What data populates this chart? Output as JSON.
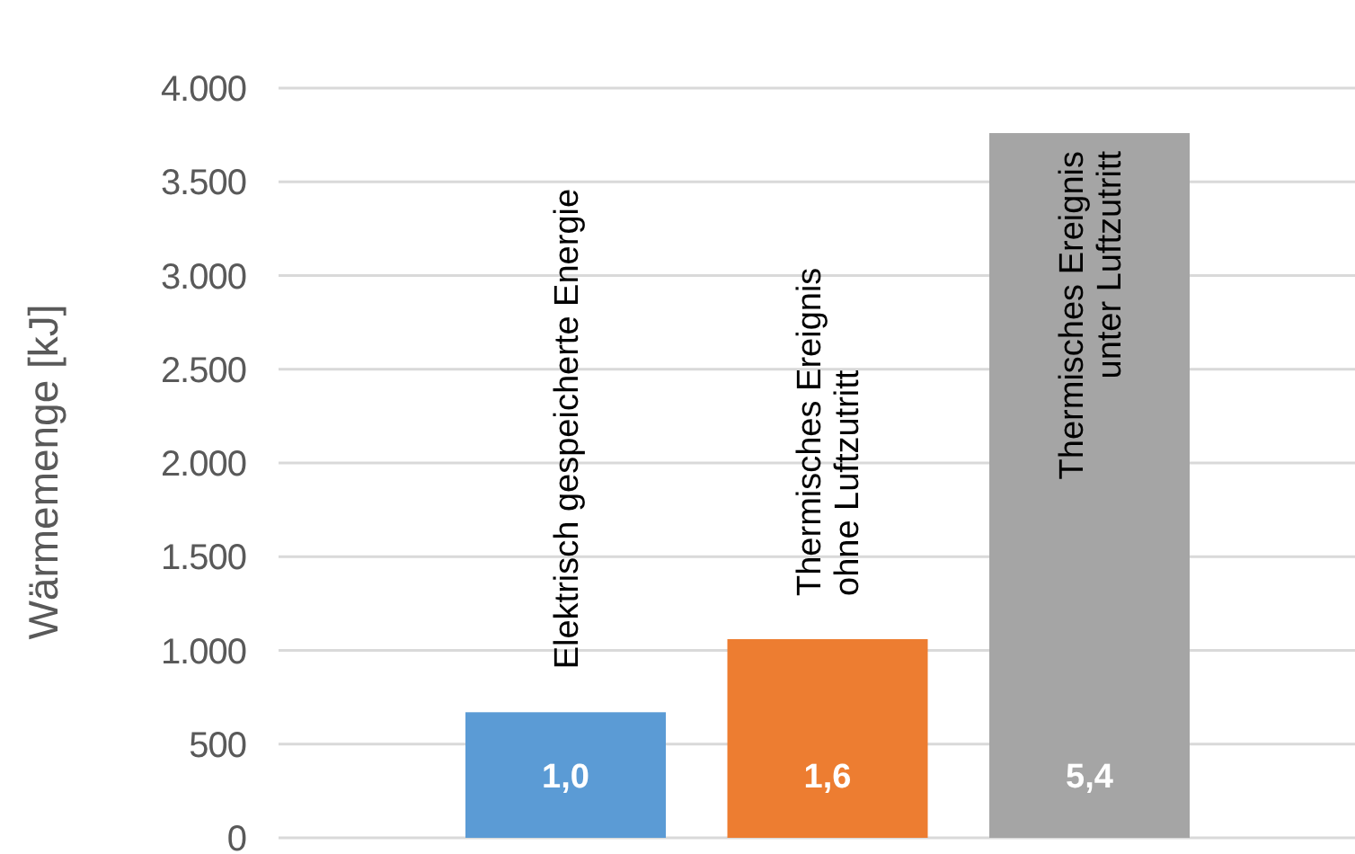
{
  "chart_data": {
    "type": "bar",
    "ylabel": "Wärmemenge [kJ]",
    "categories": [
      "Elektrisch gespeicherte Energie",
      "Thermisches Ereignis\nohne Luftzutritt",
      "Thermisches Ereignis\nunter Luftzutritt"
    ],
    "values": [
      670,
      1060,
      3760
    ],
    "colors": [
      "#5b9bd5",
      "#ed7d31",
      "#a5a5a5"
    ],
    "ylim": [
      0,
      4000
    ],
    "yticks": [
      0,
      {
        "value": 500,
        "label": "500"
      },
      {
        "value": 1000,
        "label": "1.000"
      },
      {
        "value": 1500,
        "label": "1.500"
      },
      {
        "value": 2000,
        "label": "2.000"
      },
      {
        "value": 2500,
        "label": "2.500"
      },
      {
        "value": 3000,
        "label": "3.000"
      },
      {
        "value": 3500,
        "label": "3.500"
      },
      {
        "value": 4000,
        "label": "4.000"
      }
    ],
    "grid": "y",
    "annotations": [
      "1,0",
      "1,6",
      "5,4"
    ]
  }
}
